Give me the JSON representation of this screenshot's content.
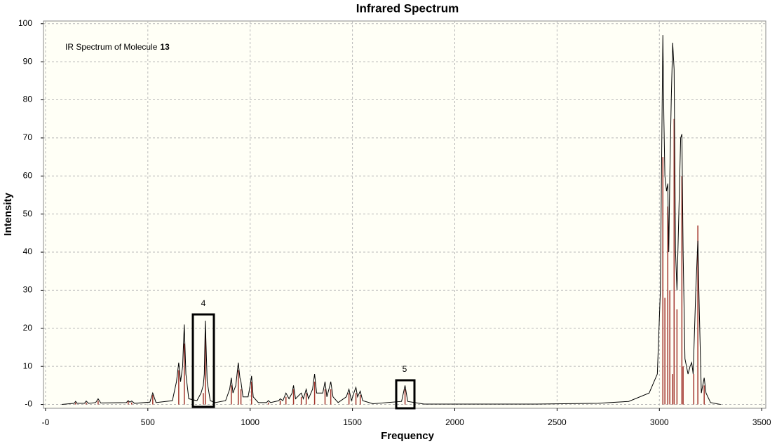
{
  "chart_data": {
    "type": "line",
    "title": "Infrared Spectrum",
    "x_label": "Frequency",
    "y_label": "Intensity",
    "annotation": {
      "text": "IR Spectrum of Molecule",
      "emphasis": "13"
    },
    "box_labels": [
      "4",
      "5"
    ],
    "xlim": [
      -10,
      3520
    ],
    "ylim": [
      -1,
      100.7
    ],
    "xticks": [
      {
        "value": 0,
        "label": "-0"
      },
      500,
      1000,
      1500,
      2000,
      2500,
      3000,
      3500
    ],
    "yticks": [
      {
        "value": 0,
        "label": "-0"
      },
      10,
      20,
      30,
      40,
      50,
      60,
      70,
      80,
      90,
      100
    ],
    "grid": true,
    "series": [
      {
        "style": "line",
        "color": "#000000",
        "x": [
          80,
          140,
          147,
          155,
          190,
          199,
          210,
          245,
          257,
          270,
          395,
          404,
          412,
          421,
          435,
          510,
          524,
          540,
          620,
          640,
          651,
          660,
          670,
          678,
          686,
          700,
          740,
          760,
          771,
          776,
          781,
          790,
          805,
          830,
          880,
          900,
          908,
          916,
          930,
          942,
          950,
          955,
          965,
          990,
          1000,
          1007,
          1015,
          1040,
          1080,
          1089,
          1100,
          1140,
          1147,
          1160,
          1175,
          1190,
          1205,
          1212,
          1222,
          1240,
          1250,
          1260,
          1274,
          1285,
          1305,
          1315,
          1325,
          1355,
          1366,
          1375,
          1390,
          1394,
          1405,
          1430,
          1470,
          1483,
          1495,
          1510,
          1517,
          1525,
          1538,
          1550,
          1600,
          1740,
          1757,
          1770,
          1850,
          2400,
          2700,
          2850,
          2950,
          2990,
          3005,
          3012,
          3017,
          3022,
          3027,
          3035,
          3041,
          3046,
          3051,
          3058,
          3065,
          3072,
          3079,
          3086,
          3095,
          3104,
          3110,
          3116,
          3125,
          3140,
          3150,
          3158,
          3165,
          3178,
          3188,
          3195,
          3205,
          3212,
          3219,
          3228,
          3250,
          3300
        ],
        "values": [
          0,
          0.3,
          0.8,
          0.3,
          0.3,
          0.9,
          0.3,
          0.5,
          1.5,
          0.4,
          0.5,
          1,
          0.6,
          0.9,
          0.3,
          0.6,
          3,
          0.5,
          1,
          6,
          11,
          6,
          10,
          21,
          8,
          1.5,
          1,
          3,
          5,
          8,
          22,
          6,
          1,
          0.5,
          1,
          4,
          7,
          3,
          5,
          11,
          7,
          6,
          2,
          2,
          5,
          7.5,
          2,
          0.5,
          0.5,
          1,
          0.5,
          1,
          1.5,
          1,
          3,
          1.5,
          3,
          5,
          1.5,
          2.5,
          3,
          1.5,
          4,
          1.5,
          4,
          8,
          3,
          3,
          6,
          2,
          5,
          6,
          2,
          0.5,
          2,
          4,
          1,
          3.5,
          4.5,
          2,
          3.5,
          1,
          0.2,
          0.8,
          5,
          0.8,
          0.1,
          0.1,
          0.3,
          0.8,
          3,
          8,
          30,
          70,
          97,
          75,
          60,
          56,
          58,
          40,
          60,
          80,
          95,
          88,
          40,
          30,
          50,
          70,
          71,
          40,
          12,
          8,
          10,
          11,
          8,
          30,
          43,
          25,
          3,
          5,
          7,
          3,
          0.5,
          0
        ]
      },
      {
        "style": "stick",
        "color": "#a3362e",
        "x": [
          147,
          199,
          257,
          404,
          421,
          524,
          651,
          678,
          771,
          781,
          908,
          942,
          955,
          1007,
          1089,
          1147,
          1175,
          1212,
          1250,
          1274,
          1315,
          1366,
          1394,
          1483,
          1517,
          1538,
          1757,
          3017,
          3027,
          3041,
          3051,
          3065,
          3072,
          3086,
          3110,
          3116,
          3168,
          3188,
          3219
        ],
        "values": [
          0.5,
          0.5,
          1,
          0.8,
          0.5,
          2.5,
          9,
          16,
          3,
          19,
          5,
          9,
          4,
          6,
          0.5,
          1,
          2,
          4,
          2,
          3,
          6,
          4,
          4,
          3,
          3,
          2.5,
          4,
          65,
          28,
          52,
          30,
          8,
          75,
          25,
          60,
          10,
          8,
          47,
          5
        ]
      }
    ]
  }
}
